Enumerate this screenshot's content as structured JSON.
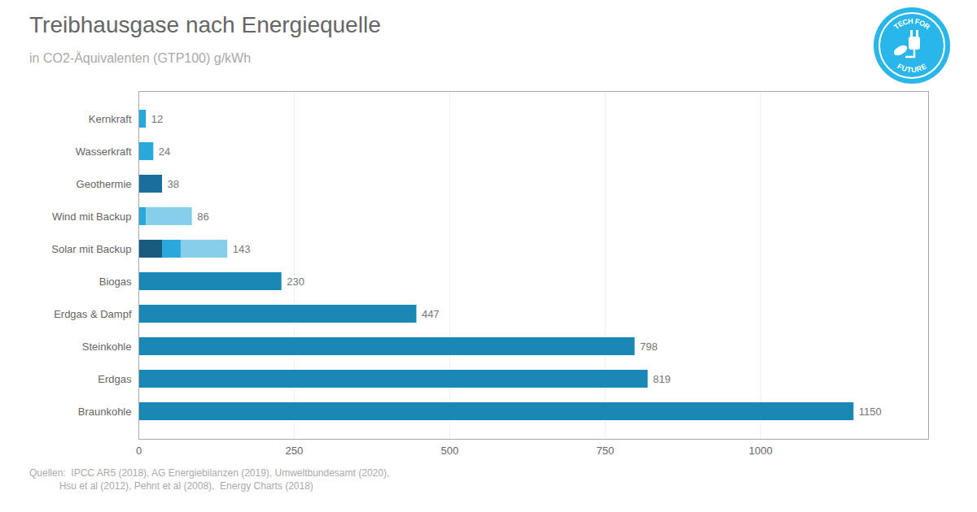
{
  "chart_data": {
    "type": "bar",
    "orientation": "horizontal",
    "stacked": true,
    "title": "Treibhausgase nach Energiequelle",
    "subtitle": "in CO2-Äquivalenten (GTP100) g/kWh",
    "annotations": [
      "Quellen:  IPCC AR5 (2018), AG Energiebilanzen (2019), Umweltbundesamt (2020),",
      "           Hsu et al (2012), Pehnt et al (2008),  Energy Charts (2018)"
    ],
    "logo_text": [
      "TECH FOR",
      "FUTURE"
    ],
    "logo_color": "#29b6e8",
    "categories": [
      "Kernkraft",
      "Wasserkraft",
      "Geothermie",
      "Wind mit Backup",
      "Solar mit Backup",
      "Biogas",
      "Erdgas & Dampf",
      "Steinkohle",
      "Erdgas",
      "Braunkohle"
    ],
    "values": [
      12,
      24,
      38,
      86,
      143,
      230,
      447,
      798,
      819,
      1150
    ],
    "series": [
      {
        "values": [
          12,
          24,
          38,
          12,
          38,
          230,
          447,
          798,
          819,
          1150
        ],
        "colors": [
          "#29a8dc",
          "#29a8dc",
          "#1a6e9e",
          "#29a8dc",
          "#1a5a80",
          "#1a88b5",
          "#1a88b5",
          "#1a88b5",
          "#1a88b5",
          "#1a88b5"
        ]
      },
      {
        "values": [
          null,
          null,
          null,
          74,
          30,
          null,
          null,
          null,
          null,
          null
        ],
        "colors": [
          null,
          null,
          null,
          "#87ceeb",
          "#29a8dc",
          null,
          null,
          null,
          null,
          null
        ]
      },
      {
        "values": [
          null,
          null,
          null,
          null,
          75,
          null,
          null,
          null,
          null,
          null
        ],
        "colors": [
          null,
          null,
          null,
          null,
          "#87ceeb",
          null,
          null,
          null,
          null,
          null
        ]
      }
    ],
    "data_labels": true,
    "xlim": [
      0,
      1270
    ],
    "xticks": [
      0,
      250,
      500,
      750,
      1000
    ],
    "grid": true
  }
}
